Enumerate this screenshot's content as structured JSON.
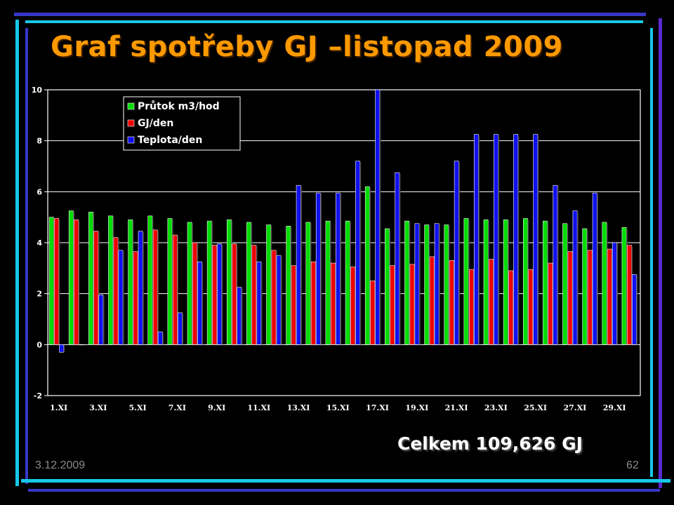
{
  "slide": {
    "title": "Graf spotřeby GJ –listopad 2009",
    "total": "Celkem 109,626 GJ",
    "date": "3.12.2009",
    "page": "62"
  },
  "chart_data": {
    "type": "bar",
    "title": "",
    "xlabel": "",
    "ylabel": "",
    "ylim": [
      -2,
      10
    ],
    "yticks": [
      -2,
      0,
      2,
      4,
      6,
      8,
      10
    ],
    "grid": true,
    "legend": "top-left",
    "categories": [
      "1.XI",
      "2.XI",
      "3.XI",
      "4.XI",
      "5.XI",
      "6.XI",
      "7.XI",
      "8.XI",
      "9.XI",
      "10.XI",
      "11.XI",
      "12.XI",
      "13.XI",
      "14.XI",
      "15.XI",
      "16.XI",
      "17.XI",
      "18.XI",
      "19.XI",
      "20.XI",
      "21.XI",
      "22.XI",
      "23.XI",
      "24.XI",
      "25.XI",
      "26.XI",
      "27.XI",
      "28.XI",
      "29.XI",
      "30.XI"
    ],
    "tick_labels": [
      "1.XI",
      "3.XI",
      "5.XI",
      "7.XI",
      "9.XI",
      "11.XI",
      "13.XI",
      "15.XI",
      "17.XI",
      "19.XI",
      "21.XI",
      "23.XI",
      "25.XI",
      "27.XI",
      "29.XI"
    ],
    "series": [
      {
        "name": "Průtok m3/hod",
        "color": "#00DD00",
        "values": [
          5.0,
          5.25,
          5.2,
          5.05,
          4.9,
          5.05,
          4.95,
          4.8,
          4.85,
          4.9,
          4.8,
          4.7,
          4.65,
          4.8,
          4.85,
          4.85,
          6.2,
          4.55,
          4.85,
          4.7,
          4.7,
          4.95,
          4.9,
          4.9,
          4.95,
          4.85,
          4.75,
          4.55,
          4.8,
          4.6
        ]
      },
      {
        "name": "GJ/den",
        "color": "#EE0000",
        "values": [
          4.95,
          4.9,
          4.45,
          4.2,
          3.65,
          4.5,
          4.3,
          4.0,
          3.9,
          3.95,
          3.9,
          3.7,
          3.1,
          3.25,
          3.2,
          3.05,
          2.5,
          3.1,
          3.15,
          3.45,
          3.3,
          2.95,
          3.35,
          2.9,
          2.95,
          3.2,
          3.65,
          3.7,
          3.75,
          3.9
        ]
      },
      {
        "name": "Teplota/den",
        "color": "#1010EE",
        "values": [
          -0.3,
          0.0,
          1.95,
          3.7,
          4.45,
          0.5,
          1.25,
          3.25,
          3.95,
          2.25,
          3.25,
          3.5,
          6.25,
          5.95,
          5.95,
          7.2,
          10.0,
          6.75,
          4.75,
          4.75,
          7.2,
          8.25,
          8.25,
          8.25,
          8.25,
          6.25,
          5.25,
          5.95,
          4.0,
          2.75
        ]
      }
    ]
  }
}
